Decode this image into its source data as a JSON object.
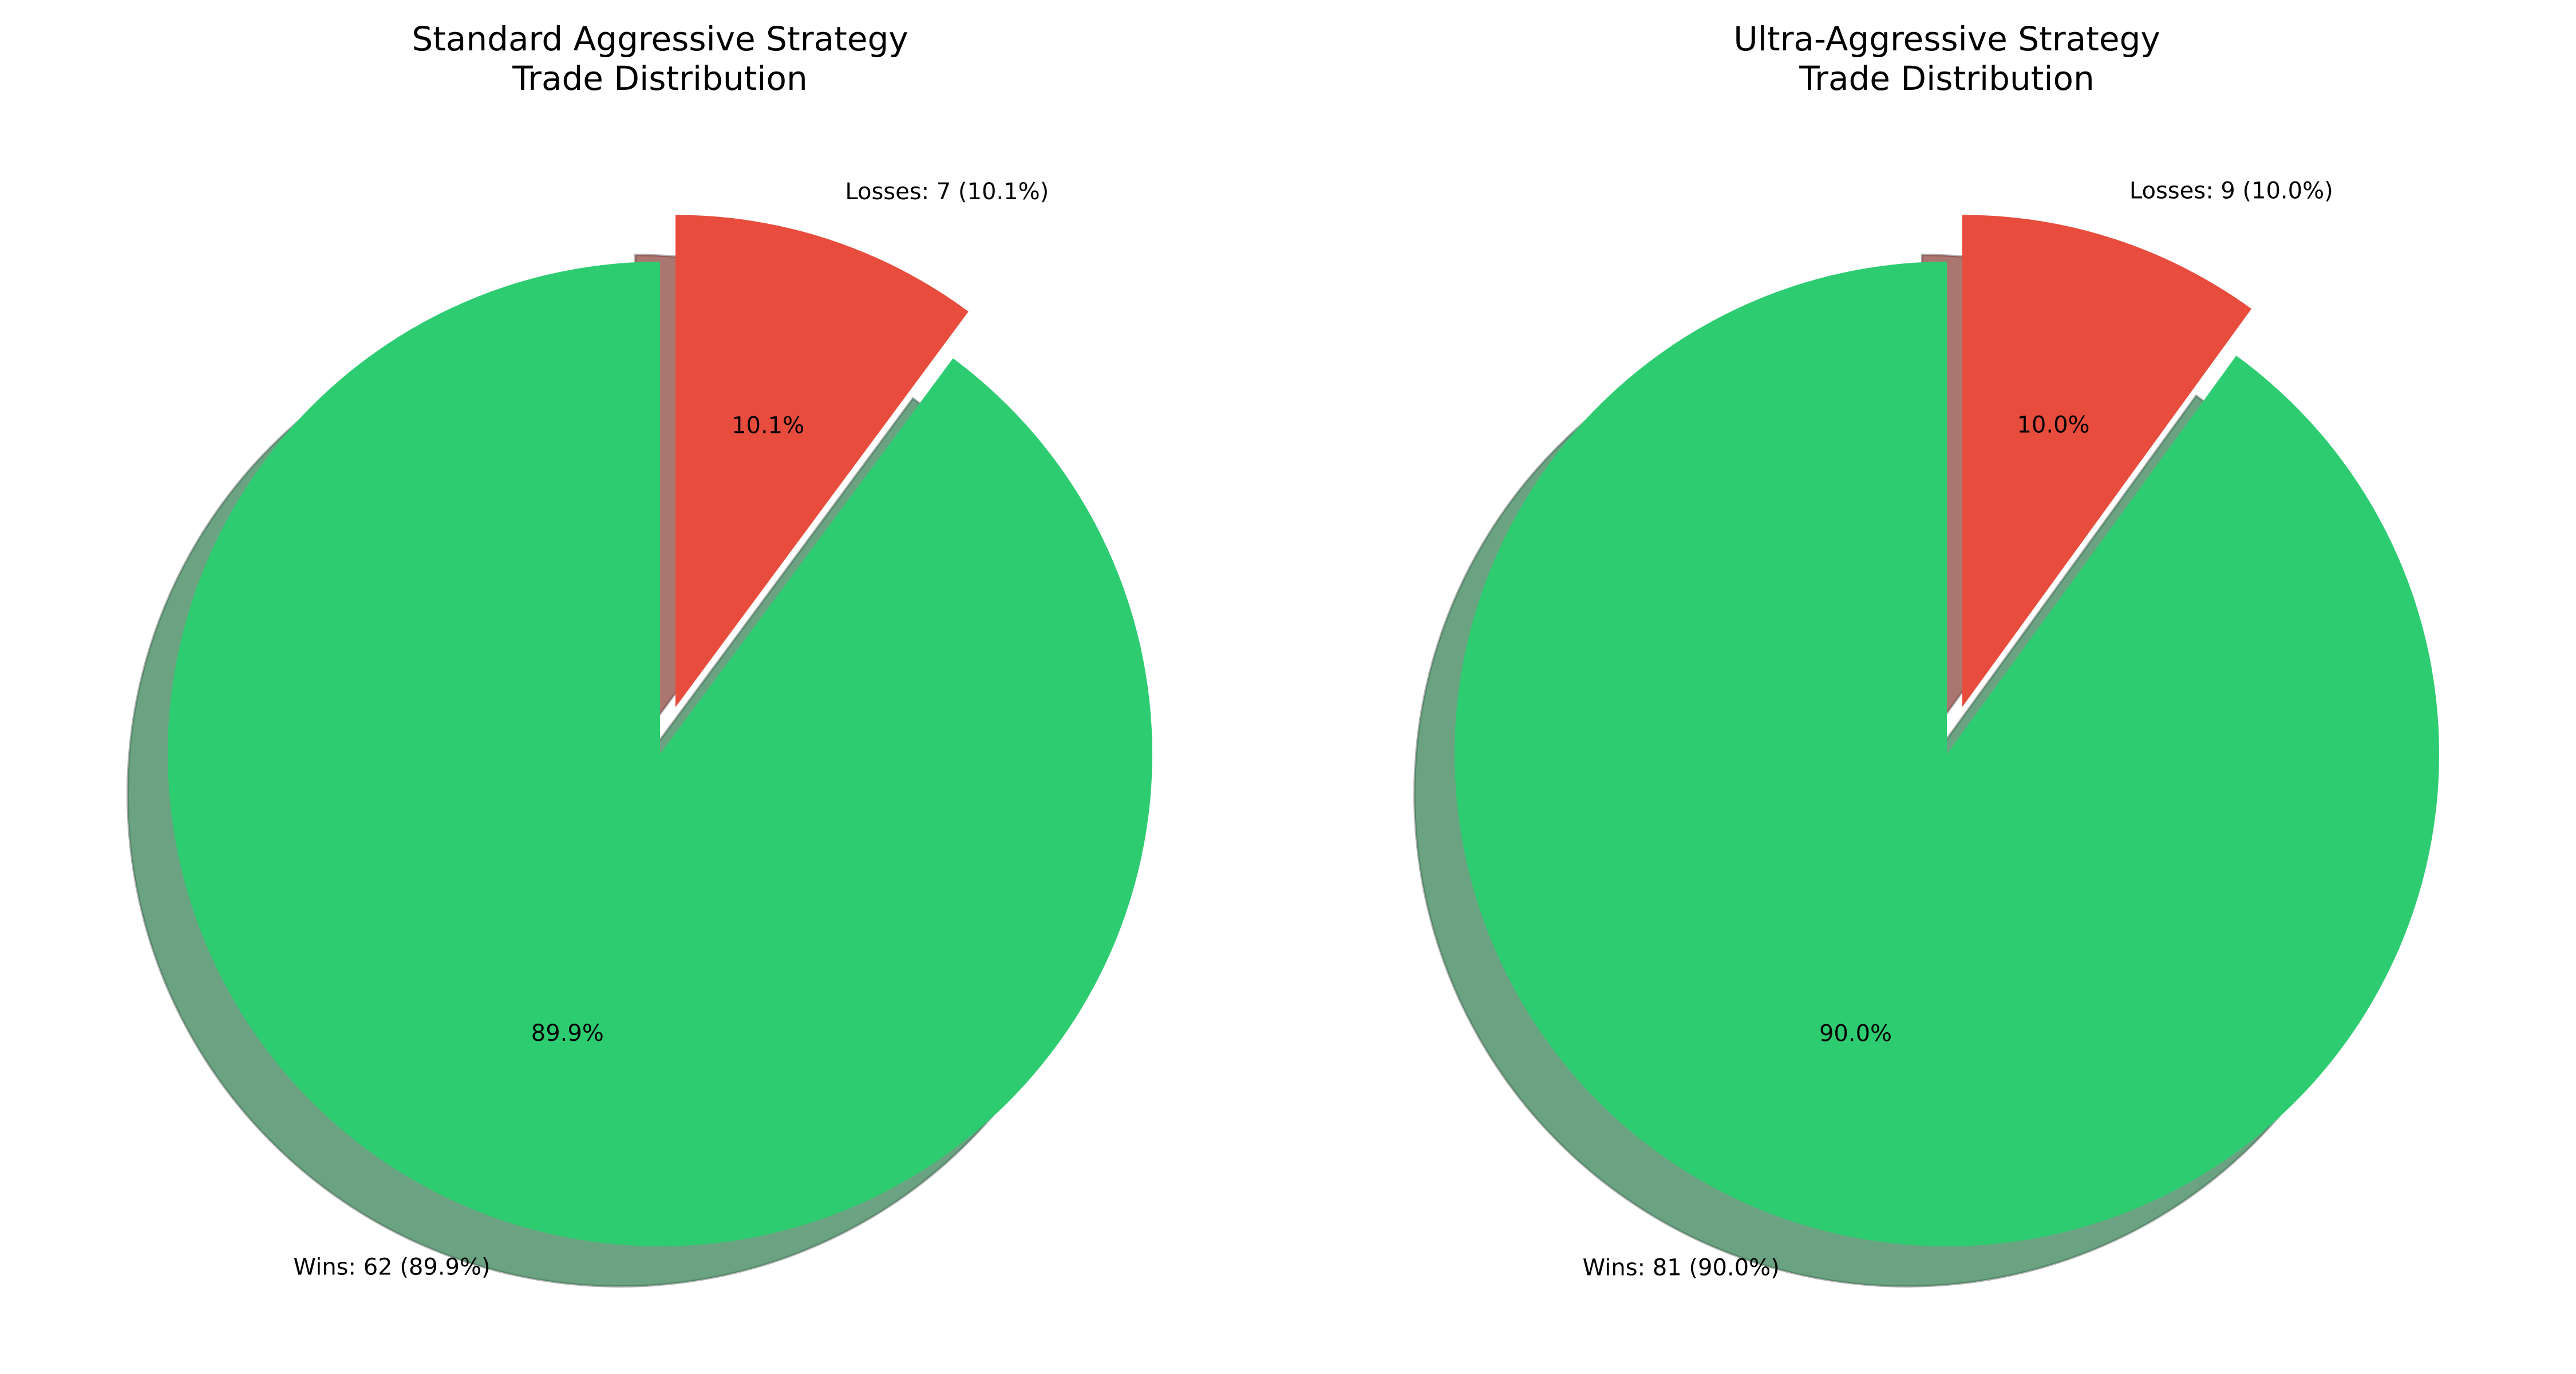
{
  "chart_data": [
    {
      "type": "pie",
      "title": [
        "Standard Aggressive Strategy",
        "Trade Distribution"
      ],
      "start_angle_deg": 90,
      "explode": [
        0,
        0.1
      ],
      "shadow": true,
      "slices": [
        {
          "label": "Wins: 62 (89.9%)",
          "value": 62,
          "pct_text": "89.9%",
          "color": "#2ecc71"
        },
        {
          "label": "Losses: 7 (10.1%)",
          "value": 7,
          "pct_text": "10.1%",
          "color": "#e74c3c"
        }
      ]
    },
    {
      "type": "pie",
      "title": [
        "Ultra-Aggressive Strategy",
        "Trade Distribution"
      ],
      "start_angle_deg": 90,
      "explode": [
        0,
        0.1
      ],
      "shadow": true,
      "slices": [
        {
          "label": "Wins: 81 (90.0%)",
          "value": 81,
          "pct_text": "90.0%",
          "color": "#2ecc71"
        },
        {
          "label": "Losses: 9 (10.0%)",
          "value": 9,
          "pct_text": "10.0%",
          "color": "#e74c3c"
        }
      ]
    }
  ]
}
